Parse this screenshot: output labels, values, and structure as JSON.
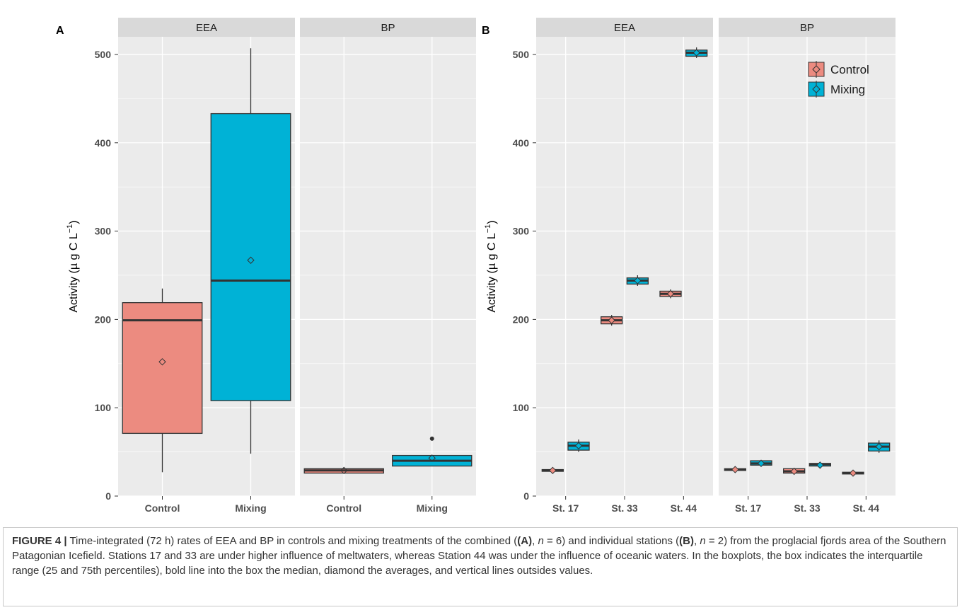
{
  "chart_data": [
    {
      "panel_label": "A",
      "type": "boxplot",
      "ylabel_prefix": "Activity (",
      "ylabel_unit": "µ g C L",
      "ylabel_exp": "−1",
      "ylabel_suffix": ")",
      "ylim": [
        0,
        520
      ],
      "yticks": [
        "0",
        "100",
        "200",
        "300",
        "400",
        "500"
      ],
      "categories": [
        "Control",
        "Mixing"
      ],
      "facets": [
        {
          "name": "EEA",
          "boxes": [
            {
              "group": "Control",
              "min": 27,
              "q1": 71,
              "median": 199,
              "q3": 219,
              "max": 235,
              "mean": 152,
              "outliers": []
            },
            {
              "group": "Mixing",
              "min": 48,
              "q1": 108,
              "median": 244,
              "q3": 433,
              "max": 507,
              "mean": 267,
              "outliers": []
            }
          ]
        },
        {
          "name": "BP",
          "boxes": [
            {
              "group": "Control",
              "min": 26,
              "q1": 26,
              "median": 29,
              "q3": 31,
              "max": 31,
              "mean": 29,
              "outliers": []
            },
            {
              "group": "Mixing",
              "min": 34,
              "q1": 34,
              "median": 40,
              "q3": 46,
              "max": 46,
              "mean": 43,
              "outliers": [
                65
              ]
            }
          ]
        }
      ],
      "colors": {
        "Control": "#ec8b80",
        "Mixing": "#00b2d6"
      },
      "grid": true
    },
    {
      "panel_label": "B",
      "type": "boxplot",
      "ylabel_prefix": "Activity (",
      "ylabel_unit": "µ g C L",
      "ylabel_exp": "−1",
      "ylabel_suffix": ")",
      "ylim": [
        0,
        520
      ],
      "yticks": [
        "0",
        "100",
        "200",
        "300",
        "400",
        "500"
      ],
      "categories": [
        "St. 17",
        "St. 33",
        "St. 44"
      ],
      "legend": {
        "placement": "top-right",
        "entries": [
          "Control",
          "Mixing"
        ]
      },
      "facets": [
        {
          "name": "EEA",
          "boxes": [
            {
              "category": "St. 17",
              "group": "Control",
              "min": 27,
              "q1": 28,
              "median": 29,
              "q3": 30,
              "max": 31,
              "mean": 29
            },
            {
              "category": "St. 17",
              "group": "Mixing",
              "min": 50,
              "q1": 52,
              "median": 57,
              "q3": 61,
              "max": 64,
              "mean": 57
            },
            {
              "category": "St. 33",
              "group": "Control",
              "min": 193,
              "q1": 195,
              "median": 199,
              "q3": 203,
              "max": 205,
              "mean": 199
            },
            {
              "category": "St. 33",
              "group": "Mixing",
              "min": 238,
              "q1": 240,
              "median": 244,
              "q3": 247,
              "max": 250,
              "mean": 244
            },
            {
              "category": "St. 44",
              "group": "Control",
              "min": 224,
              "q1": 226,
              "median": 229,
              "q3": 232,
              "max": 234,
              "mean": 229
            },
            {
              "category": "St. 44",
              "group": "Mixing",
              "min": 496,
              "q1": 498,
              "median": 502,
              "q3": 505,
              "max": 508,
              "mean": 502
            }
          ]
        },
        {
          "name": "BP",
          "boxes": [
            {
              "category": "St. 17",
              "group": "Control",
              "min": 28,
              "q1": 29,
              "median": 30,
              "q3": 31,
              "max": 32,
              "mean": 30
            },
            {
              "category": "St. 17",
              "group": "Mixing",
              "min": 34,
              "q1": 35,
              "median": 37,
              "q3": 40,
              "max": 41,
              "mean": 37
            },
            {
              "category": "St. 33",
              "group": "Control",
              "min": 26,
              "q1": 26,
              "median": 28,
              "q3": 31,
              "max": 32,
              "mean": 28
            },
            {
              "category": "St. 33",
              "group": "Mixing",
              "min": 33,
              "q1": 34,
              "median": 36,
              "q3": 37,
              "max": 38,
              "mean": 35
            },
            {
              "category": "St. 44",
              "group": "Control",
              "min": 24,
              "q1": 25,
              "median": 26,
              "q3": 27,
              "max": 28,
              "mean": 26
            },
            {
              "category": "St. 44",
              "group": "Mixing",
              "min": 49,
              "q1": 51,
              "median": 56,
              "q3": 60,
              "max": 63,
              "mean": 56
            }
          ]
        }
      ],
      "colors": {
        "Control": "#ec8b80",
        "Mixing": "#00b2d6"
      },
      "grid": true
    }
  ],
  "caption": {
    "label": "FIGURE 4 |",
    "p1": " Time-integrated (72 h) rates of EEA and BP in controls and mixing treatments of the combined (",
    "a_bold": "(A)",
    "p2": ", ",
    "n_var": "n",
    "p3": " = 6) and individual stations (",
    "b_bold": "(B)",
    "p4": ", ",
    "n_var2": "n",
    "p5": " = 2) from the proglacial fjords area of the Southern Patagonian Icefield. Stations 17 and 33 are under higher influence of meltwaters, whereas Station 44 was under the influence of oceanic waters. In the boxplots, the box indicates the interquartile range (25 and 75th percentiles), bold line into the box the median, diamond the averages, and vertical lines outsides values."
  }
}
